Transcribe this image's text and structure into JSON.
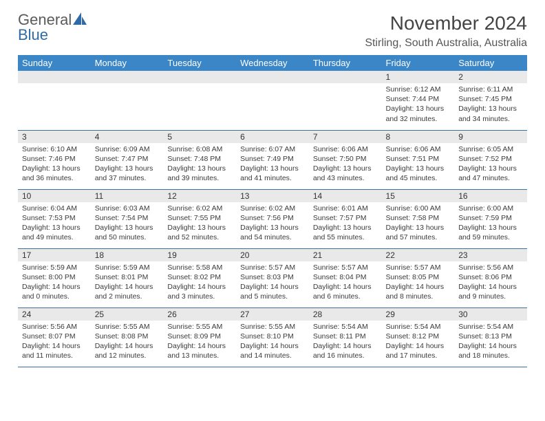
{
  "brand": {
    "line1": "General",
    "line2": "Blue"
  },
  "title": "November 2024",
  "location": "Stirling, South Australia, Australia",
  "colors": {
    "header_bg": "#3b86c6",
    "row_divider": "#3b6fa0",
    "daynum_bg": "#e9e9e9",
    "brand_blue": "#2f6aa8",
    "text": "#3a3a3a"
  },
  "weekdays": [
    "Sunday",
    "Monday",
    "Tuesday",
    "Wednesday",
    "Thursday",
    "Friday",
    "Saturday"
  ],
  "weeks": [
    [
      null,
      null,
      null,
      null,
      null,
      {
        "n": "1",
        "sr": "Sunrise: 6:12 AM",
        "ss": "Sunset: 7:44 PM",
        "d1": "Daylight: 13 hours",
        "d2": "and 32 minutes."
      },
      {
        "n": "2",
        "sr": "Sunrise: 6:11 AM",
        "ss": "Sunset: 7:45 PM",
        "d1": "Daylight: 13 hours",
        "d2": "and 34 minutes."
      }
    ],
    [
      {
        "n": "3",
        "sr": "Sunrise: 6:10 AM",
        "ss": "Sunset: 7:46 PM",
        "d1": "Daylight: 13 hours",
        "d2": "and 36 minutes."
      },
      {
        "n": "4",
        "sr": "Sunrise: 6:09 AM",
        "ss": "Sunset: 7:47 PM",
        "d1": "Daylight: 13 hours",
        "d2": "and 37 minutes."
      },
      {
        "n": "5",
        "sr": "Sunrise: 6:08 AM",
        "ss": "Sunset: 7:48 PM",
        "d1": "Daylight: 13 hours",
        "d2": "and 39 minutes."
      },
      {
        "n": "6",
        "sr": "Sunrise: 6:07 AM",
        "ss": "Sunset: 7:49 PM",
        "d1": "Daylight: 13 hours",
        "d2": "and 41 minutes."
      },
      {
        "n": "7",
        "sr": "Sunrise: 6:06 AM",
        "ss": "Sunset: 7:50 PM",
        "d1": "Daylight: 13 hours",
        "d2": "and 43 minutes."
      },
      {
        "n": "8",
        "sr": "Sunrise: 6:06 AM",
        "ss": "Sunset: 7:51 PM",
        "d1": "Daylight: 13 hours",
        "d2": "and 45 minutes."
      },
      {
        "n": "9",
        "sr": "Sunrise: 6:05 AM",
        "ss": "Sunset: 7:52 PM",
        "d1": "Daylight: 13 hours",
        "d2": "and 47 minutes."
      }
    ],
    [
      {
        "n": "10",
        "sr": "Sunrise: 6:04 AM",
        "ss": "Sunset: 7:53 PM",
        "d1": "Daylight: 13 hours",
        "d2": "and 49 minutes."
      },
      {
        "n": "11",
        "sr": "Sunrise: 6:03 AM",
        "ss": "Sunset: 7:54 PM",
        "d1": "Daylight: 13 hours",
        "d2": "and 50 minutes."
      },
      {
        "n": "12",
        "sr": "Sunrise: 6:02 AM",
        "ss": "Sunset: 7:55 PM",
        "d1": "Daylight: 13 hours",
        "d2": "and 52 minutes."
      },
      {
        "n": "13",
        "sr": "Sunrise: 6:02 AM",
        "ss": "Sunset: 7:56 PM",
        "d1": "Daylight: 13 hours",
        "d2": "and 54 minutes."
      },
      {
        "n": "14",
        "sr": "Sunrise: 6:01 AM",
        "ss": "Sunset: 7:57 PM",
        "d1": "Daylight: 13 hours",
        "d2": "and 55 minutes."
      },
      {
        "n": "15",
        "sr": "Sunrise: 6:00 AM",
        "ss": "Sunset: 7:58 PM",
        "d1": "Daylight: 13 hours",
        "d2": "and 57 minutes."
      },
      {
        "n": "16",
        "sr": "Sunrise: 6:00 AM",
        "ss": "Sunset: 7:59 PM",
        "d1": "Daylight: 13 hours",
        "d2": "and 59 minutes."
      }
    ],
    [
      {
        "n": "17",
        "sr": "Sunrise: 5:59 AM",
        "ss": "Sunset: 8:00 PM",
        "d1": "Daylight: 14 hours",
        "d2": "and 0 minutes."
      },
      {
        "n": "18",
        "sr": "Sunrise: 5:59 AM",
        "ss": "Sunset: 8:01 PM",
        "d1": "Daylight: 14 hours",
        "d2": "and 2 minutes."
      },
      {
        "n": "19",
        "sr": "Sunrise: 5:58 AM",
        "ss": "Sunset: 8:02 PM",
        "d1": "Daylight: 14 hours",
        "d2": "and 3 minutes."
      },
      {
        "n": "20",
        "sr": "Sunrise: 5:57 AM",
        "ss": "Sunset: 8:03 PM",
        "d1": "Daylight: 14 hours",
        "d2": "and 5 minutes."
      },
      {
        "n": "21",
        "sr": "Sunrise: 5:57 AM",
        "ss": "Sunset: 8:04 PM",
        "d1": "Daylight: 14 hours",
        "d2": "and 6 minutes."
      },
      {
        "n": "22",
        "sr": "Sunrise: 5:57 AM",
        "ss": "Sunset: 8:05 PM",
        "d1": "Daylight: 14 hours",
        "d2": "and 8 minutes."
      },
      {
        "n": "23",
        "sr": "Sunrise: 5:56 AM",
        "ss": "Sunset: 8:06 PM",
        "d1": "Daylight: 14 hours",
        "d2": "and 9 minutes."
      }
    ],
    [
      {
        "n": "24",
        "sr": "Sunrise: 5:56 AM",
        "ss": "Sunset: 8:07 PM",
        "d1": "Daylight: 14 hours",
        "d2": "and 11 minutes."
      },
      {
        "n": "25",
        "sr": "Sunrise: 5:55 AM",
        "ss": "Sunset: 8:08 PM",
        "d1": "Daylight: 14 hours",
        "d2": "and 12 minutes."
      },
      {
        "n": "26",
        "sr": "Sunrise: 5:55 AM",
        "ss": "Sunset: 8:09 PM",
        "d1": "Daylight: 14 hours",
        "d2": "and 13 minutes."
      },
      {
        "n": "27",
        "sr": "Sunrise: 5:55 AM",
        "ss": "Sunset: 8:10 PM",
        "d1": "Daylight: 14 hours",
        "d2": "and 14 minutes."
      },
      {
        "n": "28",
        "sr": "Sunrise: 5:54 AM",
        "ss": "Sunset: 8:11 PM",
        "d1": "Daylight: 14 hours",
        "d2": "and 16 minutes."
      },
      {
        "n": "29",
        "sr": "Sunrise: 5:54 AM",
        "ss": "Sunset: 8:12 PM",
        "d1": "Daylight: 14 hours",
        "d2": "and 17 minutes."
      },
      {
        "n": "30",
        "sr": "Sunrise: 5:54 AM",
        "ss": "Sunset: 8:13 PM",
        "d1": "Daylight: 14 hours",
        "d2": "and 18 minutes."
      }
    ]
  ]
}
